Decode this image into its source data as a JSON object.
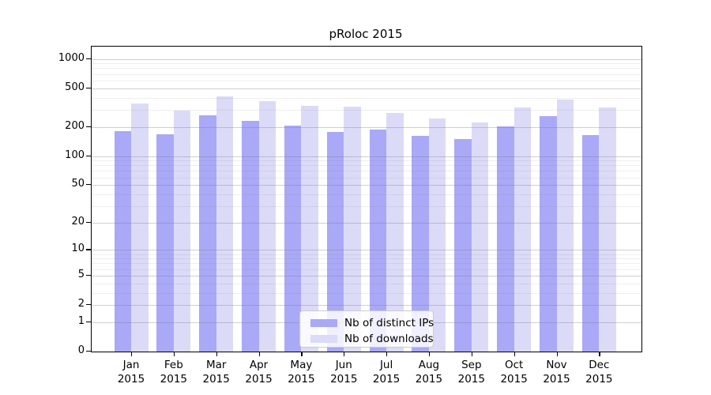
{
  "title": "pRoloc 2015",
  "chart_data": {
    "type": "bar",
    "title": "pRoloc 2015",
    "categories": [
      "Jan",
      "Feb",
      "Mar",
      "Apr",
      "May",
      "Jun",
      "Jul",
      "Aug",
      "Sep",
      "Oct",
      "Nov",
      "Dec"
    ],
    "category_year": "2015",
    "series": [
      {
        "name": "Nb of distinct IPs",
        "color": "#a9a9f7",
        "values": [
          181,
          167,
          263,
          232,
          208,
          178,
          189,
          162,
          150,
          204,
          258,
          165
        ]
      },
      {
        "name": "Nb of downloads",
        "color": "#dbdbf8",
        "values": [
          349,
          296,
          412,
          371,
          328,
          322,
          277,
          244,
          221,
          315,
          382,
          318
        ]
      }
    ],
    "y_axis": {
      "scale": "log1p",
      "tick_values": [
        0,
        1,
        2,
        5,
        10,
        20,
        50,
        100,
        200,
        500,
        1000
      ],
      "minor_tick_values": [
        3,
        4,
        6,
        7,
        8,
        9,
        30,
        40,
        60,
        70,
        80,
        90,
        300,
        400,
        600,
        700,
        800,
        900
      ],
      "range": [
        0,
        1000
      ]
    },
    "grid": "on",
    "legend_position": "lower-center"
  }
}
